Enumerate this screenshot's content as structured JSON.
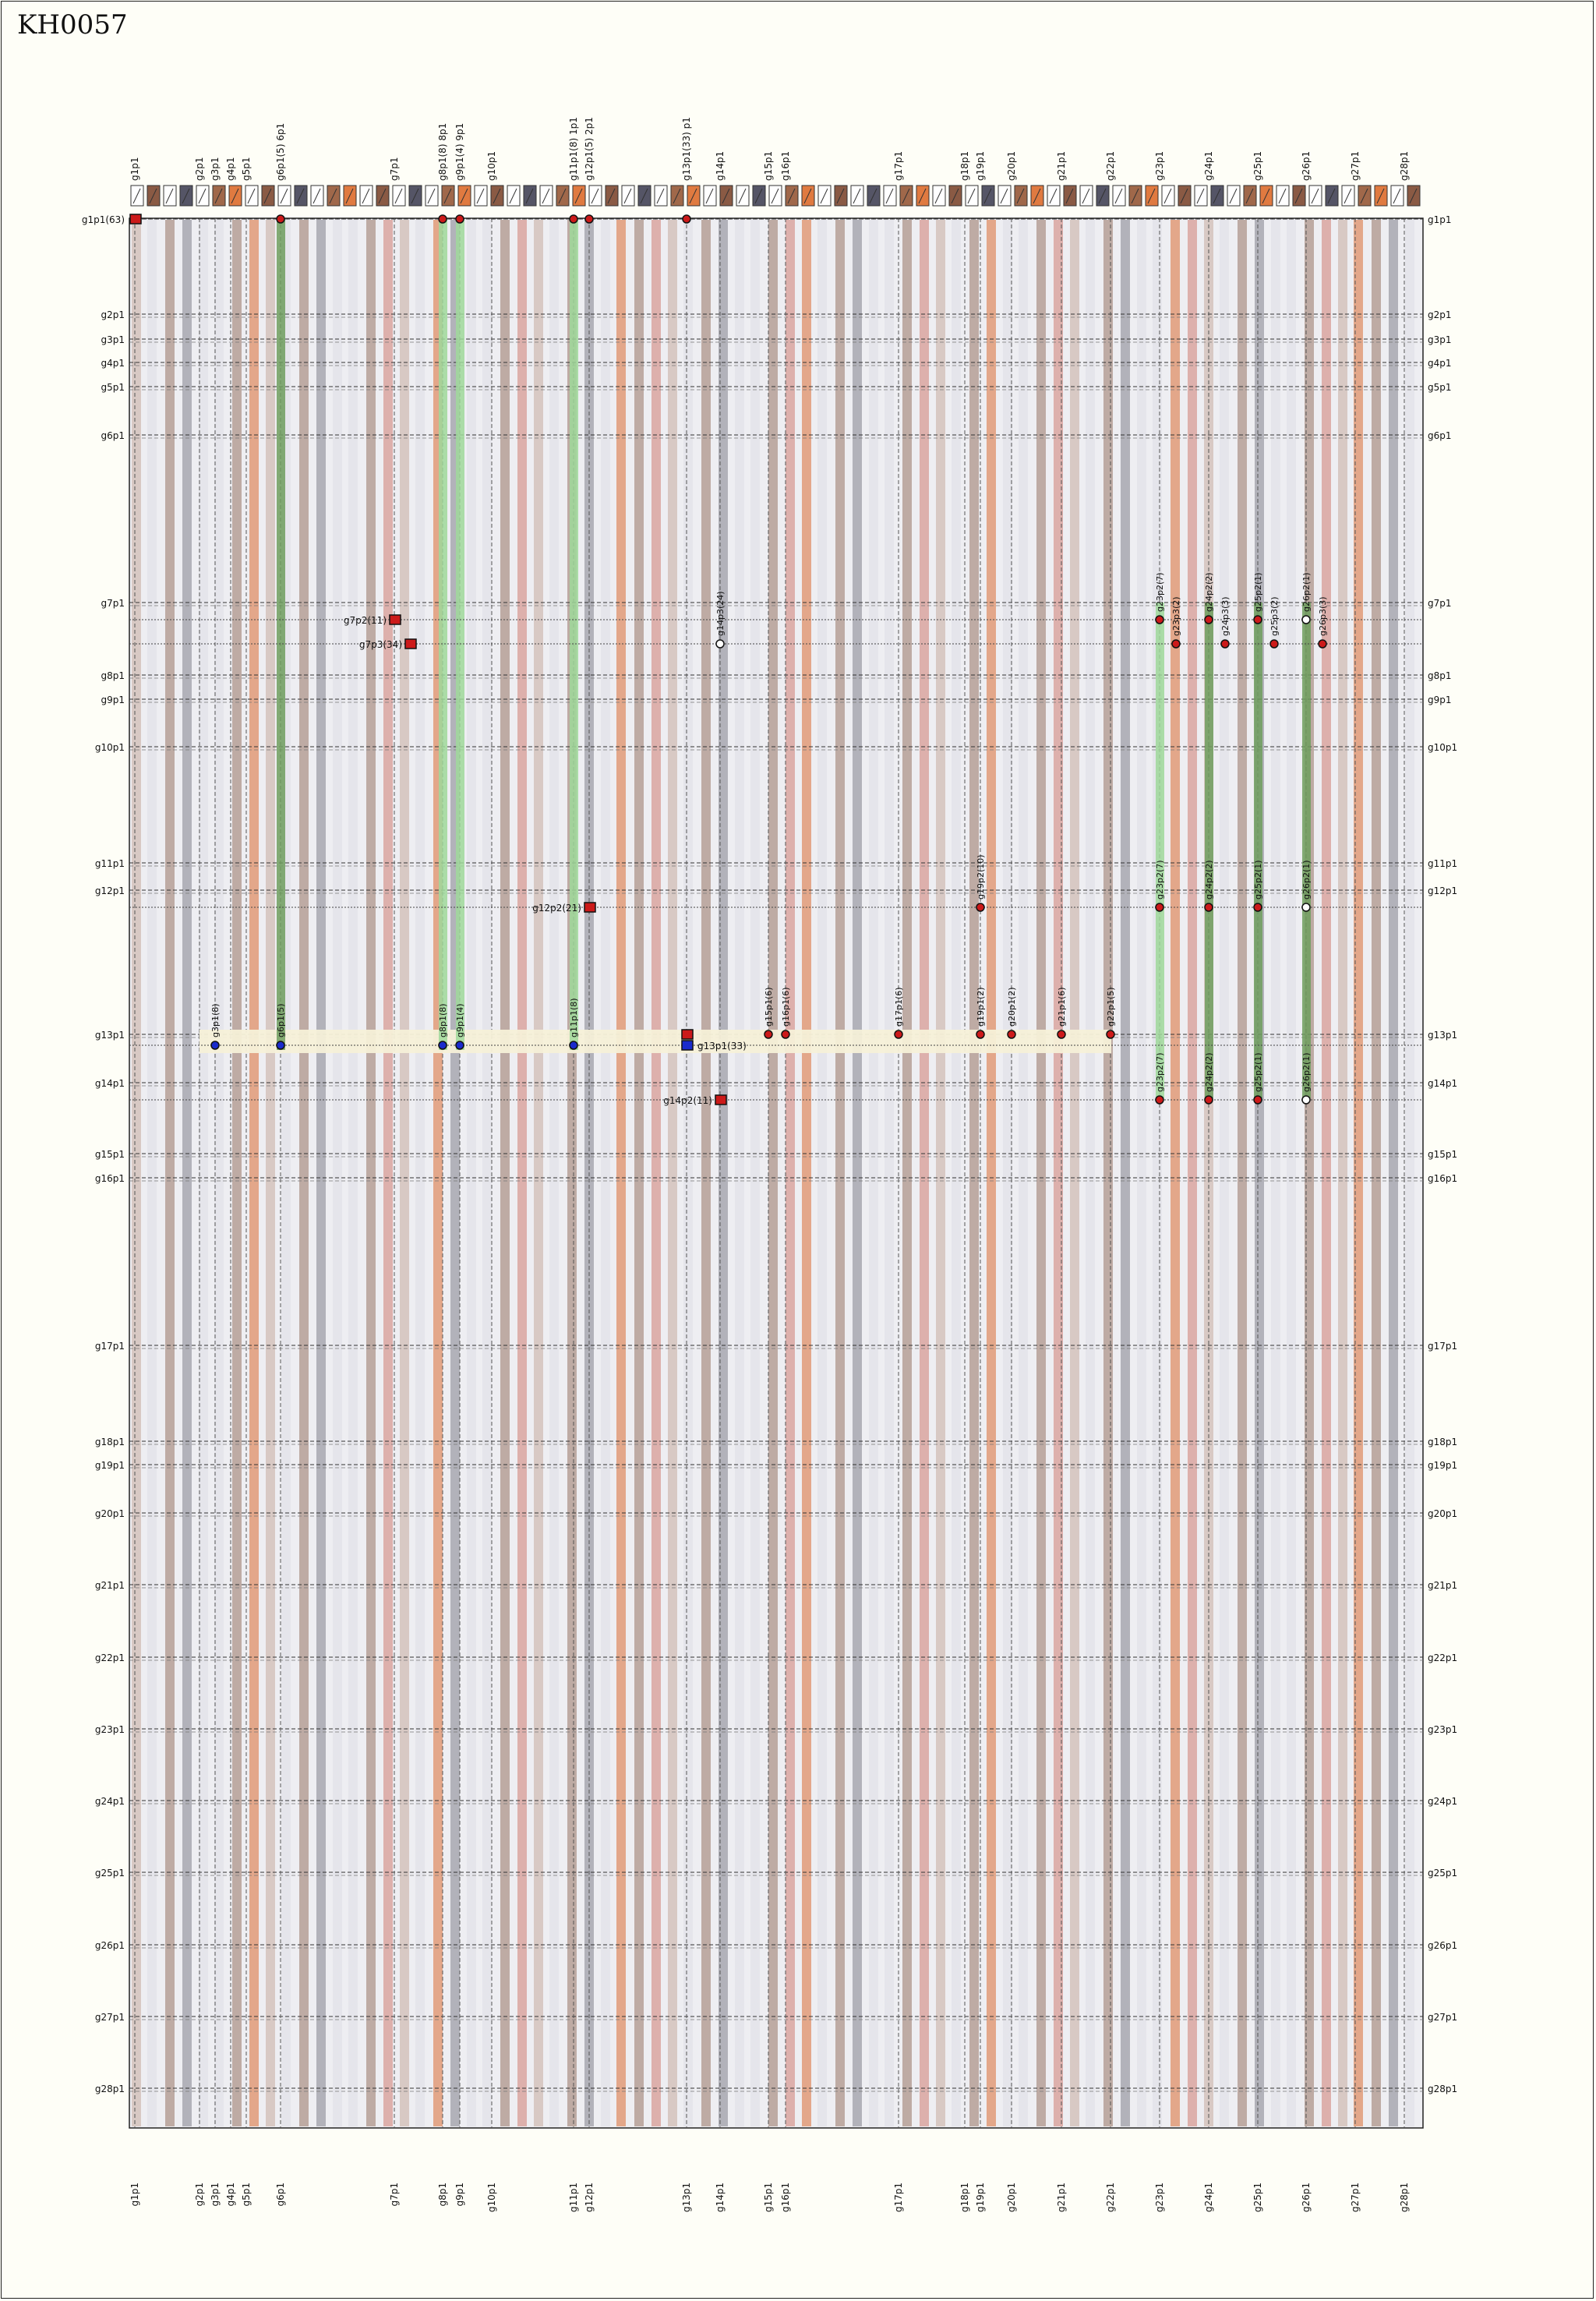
{
  "title": "KH0057",
  "colors": {
    "band_gray": "#a7a7b0",
    "band_brown": "#b59f97",
    "band_brown_light": "#d4c2bc",
    "band_light": "#e3e3ea",
    "band_orange": "#e09a78",
    "band_red": "#d9a5a0",
    "link_green": "#9fd89a",
    "link_green_dark": "#6e9e5e",
    "highlight_yellow": "#f5f0d8",
    "marker_red": "#cc1a1a",
    "marker_blue": "#1a2bcc"
  },
  "columns": [
    {
      "label": "g1p1",
      "top": "g1p1",
      "shade": "brown"
    },
    {
      "label": "g2p1",
      "top": "g2p1",
      "shade": "gray"
    },
    {
      "label": "g3p1",
      "top": "g3p1",
      "shade": "light"
    },
    {
      "label": "g4p1",
      "top": "g4p1",
      "shade": "light"
    },
    {
      "label": "g5p1",
      "top": "g5p1",
      "shade": "light"
    },
    {
      "label": "g6p1",
      "top": "g6p1(5) 6p1",
      "shade": "brown"
    },
    {
      "label": "g7p1",
      "top": "g7p1",
      "shade": "brown"
    },
    {
      "label": "g8p1",
      "top": "g8p1(8) 8p1",
      "shade": "brown"
    },
    {
      "label": "g9p1",
      "top": "g9p1(4) 9p1",
      "shade": "light"
    },
    {
      "label": "g10p1",
      "top": "g10p1",
      "shade": "gray"
    },
    {
      "label": "g11p1",
      "top": "g11p1(8) 1p1",
      "shade": "brown"
    },
    {
      "label": "g12p1",
      "top": "g12p1(5) 2p1",
      "shade": "light"
    },
    {
      "label": "g13p1",
      "top": "g13p1(33) p1",
      "shade": "brown"
    },
    {
      "label": "g14p1",
      "top": "g14p1",
      "shade": "gray"
    },
    {
      "label": "g15p1",
      "top": "g15p1",
      "shade": "light"
    },
    {
      "label": "g16p1",
      "top": "g16p1",
      "shade": "light"
    },
    {
      "label": "g17p1",
      "top": "g17p1",
      "shade": "gray"
    },
    {
      "label": "g18p1",
      "top": "g18p1",
      "shade": "light"
    },
    {
      "label": "g19p1",
      "top": "g19p1",
      "shade": "brown"
    },
    {
      "label": "g20p1",
      "top": "g20p1",
      "shade": "light"
    },
    {
      "label": "g21p1",
      "top": "g21p1",
      "shade": "brown"
    },
    {
      "label": "g22p1",
      "top": "g22p1",
      "shade": "brown"
    },
    {
      "label": "g23p1",
      "top": "g23p1",
      "shade": "brown"
    },
    {
      "label": "g24p1",
      "top": "g24p1",
      "shade": "brown"
    },
    {
      "label": "g25p1",
      "top": "g25p1",
      "shade": "brown"
    },
    {
      "label": "g26p1",
      "top": "g26p1",
      "shade": "light"
    },
    {
      "label": "g27p1",
      "top": "g27p1",
      "shade": "brown"
    },
    {
      "label": "g28p1",
      "top": "g28p1",
      "shade": "light"
    }
  ],
  "rows": [
    "g1p1(63)",
    "g2p1",
    "g3p1",
    "g4p1",
    "g5p1",
    "g6p1",
    "g7p1",
    "g8p1",
    "g9p1",
    "g10p1",
    "g11p1",
    "g12p1",
    "g13p1",
    "g14p1",
    "g15p1",
    "g16p1",
    "g17p1",
    "g18p1",
    "g19p1",
    "g20p1",
    "g21p1",
    "g22p1",
    "g23p1",
    "g24p1",
    "g25p1",
    "g26p1",
    "g27p1",
    "g28p1"
  ],
  "rows_right": [
    "g1p1",
    "g2p1",
    "g3p1",
    "g4p1",
    "g5p1",
    "g6p1",
    "g7p1",
    "g8p1",
    "g9p1",
    "g10p1",
    "g11p1",
    "g12p1",
    "g13p1",
    "g14p1",
    "g15p1",
    "g16p1",
    "g17p1",
    "g18p1",
    "g19p1",
    "g20p1",
    "g21p1",
    "g22p1",
    "g23p1",
    "g24p1",
    "g25p1",
    "g26p1",
    "g27p1",
    "g28p1"
  ],
  "links": [
    {
      "col": "g6p1",
      "from": "g1p1",
      "to": "g13p1",
      "tone": "dark"
    },
    {
      "col": "g8p1",
      "from": "g1p1",
      "to": "g13p1",
      "tone": "light"
    },
    {
      "col": "g9p1",
      "from": "g1p1",
      "to": "g13p1",
      "tone": "light"
    },
    {
      "col": "g11p1",
      "from": "g1p1",
      "to": "g13p1",
      "tone": "light"
    },
    {
      "col": "g23p1",
      "from": "g7p1",
      "to": "g14p1",
      "tone": "light"
    },
    {
      "col": "g24p1",
      "from": "g7p1",
      "to": "g14p1",
      "tone": "dark"
    },
    {
      "col": "g25p1",
      "from": "g7p1",
      "to": "g14p1",
      "tone": "dark"
    },
    {
      "col": "g26p1",
      "from": "g7p1",
      "to": "g14p1",
      "tone": "dark"
    }
  ],
  "square_markers": [
    {
      "label": "g1p1(63)",
      "col": "g1p1",
      "row": "g1p1",
      "color": "red"
    },
    {
      "label": "g7p2(11)",
      "col": "g7p1",
      "row": "g7p1",
      "color": "red",
      "sub": 1
    },
    {
      "label": "g7p3(34)",
      "col": "g7p1",
      "row": "g7p1",
      "color": "red",
      "sub": 2
    },
    {
      "label": "g12p2(21)",
      "col": "g12p1",
      "row": "g12p1",
      "color": "red",
      "sub": 1
    },
    {
      "label": "g13p1(33)",
      "col": "g13p1",
      "row": "g13p1",
      "color": "blue",
      "sub": 0
    },
    {
      "label": "g14p2(11)",
      "col": "g14p1",
      "row": "g14p1",
      "color": "red",
      "sub": 1
    }
  ],
  "dot_markers": [
    {
      "label": "g6p1(5)",
      "col": "g6p1",
      "row": "g1p1"
    },
    {
      "label": "g8p1(8)",
      "col": "g8p1",
      "row": "g1p1"
    },
    {
      "label": "g9p1(4)",
      "col": "g9p1",
      "row": "g1p1"
    },
    {
      "label": "g11p1(8)",
      "col": "g11p1",
      "row": "g1p1"
    },
    {
      "label": "g12p1(5)",
      "col": "g12p1",
      "row": "g1p1"
    },
    {
      "label": "g13p1(33)",
      "col": "g13p1",
      "row": "g1p1"
    },
    {
      "label": "g14p3(24)",
      "col": "g14p1",
      "row": "g7p1",
      "sub": 2,
      "hollow": true
    },
    {
      "label": "g23p2(7)",
      "col": "g23p1",
      "row": "g7p1",
      "sub": 1
    },
    {
      "label": "g23p3(2)",
      "col": "g23p1",
      "row": "g7p1",
      "sub": 2,
      "offset": 1
    },
    {
      "label": "g24p2(2)",
      "col": "g24p1",
      "row": "g7p1",
      "sub": 1
    },
    {
      "label": "g24p3(3)",
      "col": "g24p1",
      "row": "g7p1",
      "sub": 2,
      "offset": 1
    },
    {
      "label": "g25p2(1)",
      "col": "g25p1",
      "row": "g7p1",
      "sub": 1
    },
    {
      "label": "g25p3(2)",
      "col": "g25p1",
      "row": "g7p1",
      "sub": 2,
      "offset": 1
    },
    {
      "label": "g26p2(1)",
      "col": "g26p1",
      "row": "g7p1",
      "sub": 1,
      "hollow": true
    },
    {
      "label": "g26p3(3)",
      "col": "g26p1",
      "row": "g7p1",
      "sub": 2,
      "offset": 1
    },
    {
      "label": "g19p2(10)",
      "col": "g19p1",
      "row": "g12p1",
      "sub": 1
    },
    {
      "label": "g23p2(7)",
      "col": "g23p1",
      "row": "g12p1",
      "sub": 1
    },
    {
      "label": "g24p2(2)",
      "col": "g24p1",
      "row": "g12p1",
      "sub": 1
    },
    {
      "label": "g25p2(1)",
      "col": "g25p1",
      "row": "g12p1",
      "sub": 1
    },
    {
      "label": "g26p2(1)",
      "col": "g26p1",
      "row": "g12p1",
      "sub": 1,
      "hollow": true
    },
    {
      "label": "g15p1(6)",
      "col": "g15p1",
      "row": "g13p1"
    },
    {
      "label": "g16p1(6)",
      "col": "g16p1",
      "row": "g13p1"
    },
    {
      "label": "g17p1(6)",
      "col": "g17p1",
      "row": "g13p1"
    },
    {
      "label": "g19p1(2)",
      "col": "g19p1",
      "row": "g13p1"
    },
    {
      "label": "g20p1(2)",
      "col": "g20p1",
      "row": "g13p1"
    },
    {
      "label": "g21p1(6)",
      "col": "g21p1",
      "row": "g13p1"
    },
    {
      "label": "g22p1(5)",
      "col": "g22p1",
      "row": "g13p1"
    },
    {
      "label": "g3p1(8)",
      "col": "g3p1",
      "row": "g13p1",
      "sub": 0,
      "color": "blue"
    },
    {
      "label": "g6p1(5)",
      "col": "g6p1",
      "row": "g13p1",
      "sub": 0,
      "color": "blue"
    },
    {
      "label": "g8p1(8)",
      "col": "g8p1",
      "row": "g13p1",
      "sub": 0,
      "color": "blue"
    },
    {
      "label": "g9p1(4)",
      "col": "g9p1",
      "row": "g13p1",
      "sub": 0,
      "color": "blue"
    },
    {
      "label": "g11p1(8)",
      "col": "g11p1",
      "row": "g13p1",
      "sub": 0,
      "color": "blue"
    },
    {
      "label": "g23p2(7)",
      "col": "g23p1",
      "row": "g14p1",
      "sub": 1
    },
    {
      "label": "g24p2(2)",
      "col": "g24p1",
      "row": "g14p1",
      "sub": 1
    },
    {
      "label": "g25p2(1)",
      "col": "g25p1",
      "row": "g14p1",
      "sub": 1
    },
    {
      "label": "g26p2(1)",
      "col": "g26p1",
      "row": "g14p1",
      "sub": 1,
      "hollow": true
    }
  ]
}
